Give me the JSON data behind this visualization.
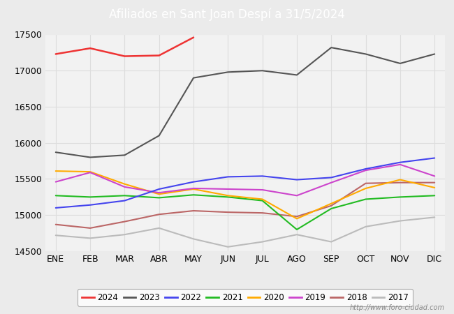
{
  "title": "Afiliados en Sant Joan Despí a 31/5/2024",
  "title_bg_color": "#4472C4",
  "title_text_color": "white",
  "ylim": [
    14500,
    17500
  ],
  "months": [
    "ENE",
    "FEB",
    "MAR",
    "ABR",
    "MAY",
    "JUN",
    "JUL",
    "AGO",
    "SEP",
    "OCT",
    "NOV",
    "DIC"
  ],
  "watermark": "http://www.foro-ciudad.com",
  "series": {
    "2024": {
      "color": "#EE3333",
      "linewidth": 1.8,
      "data": [
        17230,
        17310,
        17200,
        17210,
        17460,
        null,
        null,
        null,
        null,
        null,
        null,
        null
      ]
    },
    "2023": {
      "color": "#555555",
      "linewidth": 1.5,
      "data": [
        15870,
        15800,
        15830,
        16100,
        16900,
        16980,
        17000,
        16940,
        17320,
        17230,
        17100,
        17230
      ]
    },
    "2022": {
      "color": "#4444EE",
      "linewidth": 1.5,
      "data": [
        15100,
        15140,
        15200,
        15360,
        15460,
        15530,
        15540,
        15490,
        15520,
        15640,
        15730,
        15790
      ]
    },
    "2021": {
      "color": "#22BB22",
      "linewidth": 1.5,
      "data": [
        15270,
        15250,
        15270,
        15240,
        15280,
        15250,
        15200,
        14800,
        15090,
        15220,
        15250,
        15270
      ]
    },
    "2020": {
      "color": "#FFAA00",
      "linewidth": 1.5,
      "data": [
        15610,
        15600,
        15430,
        15290,
        15360,
        15270,
        15220,
        14950,
        15160,
        15370,
        15490,
        15380
      ]
    },
    "2019": {
      "color": "#CC44CC",
      "linewidth": 1.5,
      "data": [
        15460,
        15590,
        15390,
        15310,
        15370,
        15360,
        15350,
        15270,
        15450,
        15620,
        15700,
        15540
      ]
    },
    "2018": {
      "color": "#BB6666",
      "linewidth": 1.5,
      "data": [
        14870,
        14820,
        14910,
        15010,
        15060,
        15040,
        15030,
        14980,
        15130,
        15440,
        15450,
        15450
      ]
    },
    "2017": {
      "color": "#BBBBBB",
      "linewidth": 1.5,
      "data": [
        14720,
        14680,
        14730,
        14820,
        14670,
        14560,
        14630,
        14730,
        14630,
        14840,
        14920,
        14970
      ]
    }
  },
  "background_color": "#EBEBEB",
  "plot_bg_color": "#F2F2F2",
  "grid_color": "#DDDDDD",
  "tick_fontsize": 9,
  "legend_fontsize": 8.5
}
